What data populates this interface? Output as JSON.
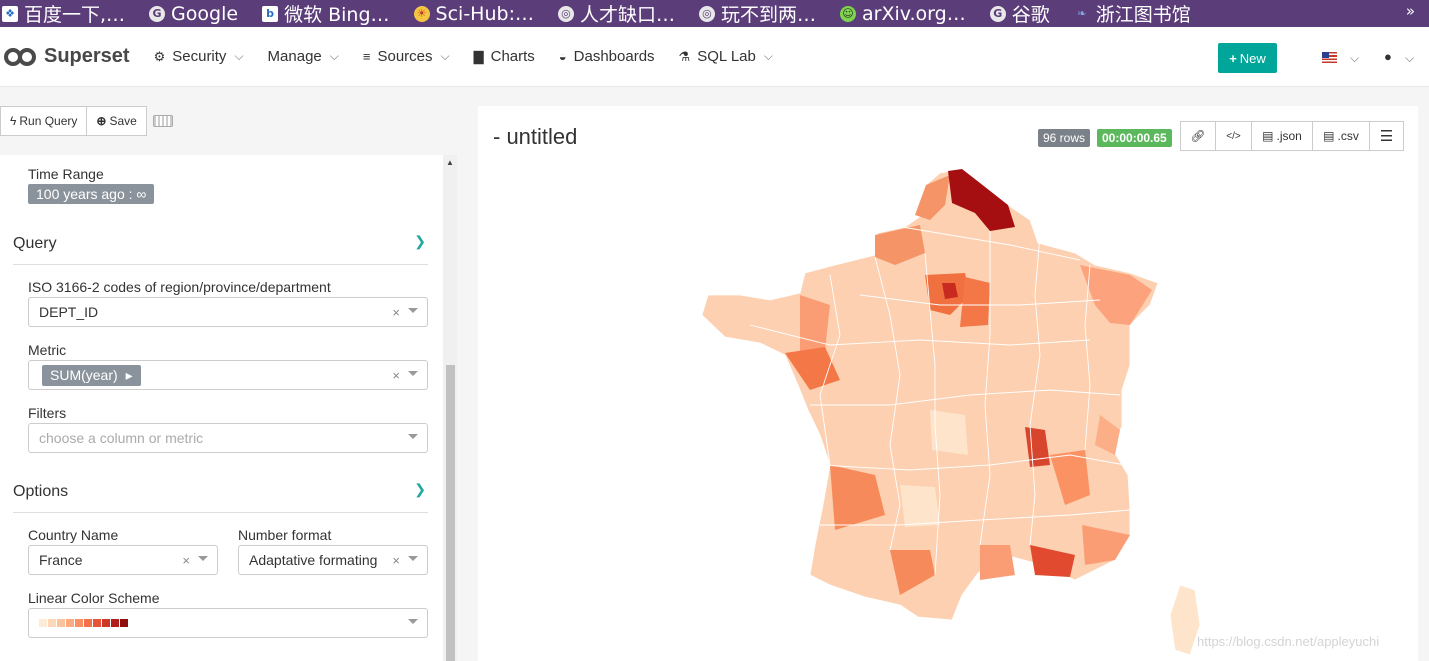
{
  "bookmarks": [
    {
      "icon": "baidu-icon",
      "label": "百度一下,…"
    },
    {
      "icon": "google-icon",
      "label": "Google"
    },
    {
      "icon": "bing-icon",
      "label": "微软 Bing…"
    },
    {
      "icon": "scihub-icon",
      "label": "Sci-Hub:…"
    },
    {
      "icon": "globe-icon",
      "label": "人才缺口…"
    },
    {
      "icon": "globe-icon",
      "label": "玩不到两…"
    },
    {
      "icon": "arxiv-icon",
      "label": "arXiv.org…"
    },
    {
      "icon": "google-icon",
      "label": "谷歌"
    },
    {
      "icon": "bird-icon",
      "label": "浙江图书馆"
    }
  ],
  "bookmarks_more": "»",
  "navbar": {
    "brand": "Superset",
    "items": [
      {
        "name": "security",
        "icon": "gears-icon",
        "label": "Security",
        "has_caret": true
      },
      {
        "name": "manage",
        "icon": "",
        "label": "Manage",
        "has_caret": true
      },
      {
        "name": "sources",
        "icon": "database-icon",
        "label": "Sources",
        "has_caret": true
      },
      {
        "name": "charts",
        "icon": "bar-chart-icon",
        "label": "Charts",
        "has_caret": false
      },
      {
        "name": "dashboards",
        "icon": "dashboard-icon",
        "label": "Dashboards",
        "has_caret": false
      },
      {
        "name": "sql-lab",
        "icon": "flask-icon",
        "label": "SQL Lab",
        "has_caret": true
      }
    ],
    "new_label": "New"
  },
  "toolbar": {
    "run_query": "Run Query",
    "save": "Save"
  },
  "time_range": {
    "label": "Time Range",
    "value": "100 years ago : ∞"
  },
  "query": {
    "title": "Query",
    "entity_label": "ISO 3166-2 codes of region/province/department",
    "entity_value": "DEPT_ID",
    "metric_label": "Metric",
    "metric_value": "SUM(year)",
    "filters_label": "Filters",
    "filters_placeholder": "choose a column or metric"
  },
  "options": {
    "title": "Options",
    "country_label": "Country Name",
    "country_value": "France",
    "number_format_label": "Number format",
    "number_format_value": "Adaptative formating",
    "color_scheme_label": "Linear Color Scheme",
    "color_scheme_swatches": [
      "#fdebd7",
      "#fcd8b8",
      "#fcc29c",
      "#fcaa81",
      "#fb8e65",
      "#f3704d",
      "#e4533a",
      "#ce3828",
      "#b11f1c",
      "#8f0e0e"
    ]
  },
  "chart": {
    "title": "- untitled",
    "rows_badge": "96 rows",
    "timer_badge": "00:00:00.65",
    "json_label": ".json",
    "csv_label": ".csv",
    "colors": {
      "rows": "#7b8188",
      "timer": "#5cb85c"
    }
  },
  "watermark": "https://blog.csdn.net/appleyuchi"
}
